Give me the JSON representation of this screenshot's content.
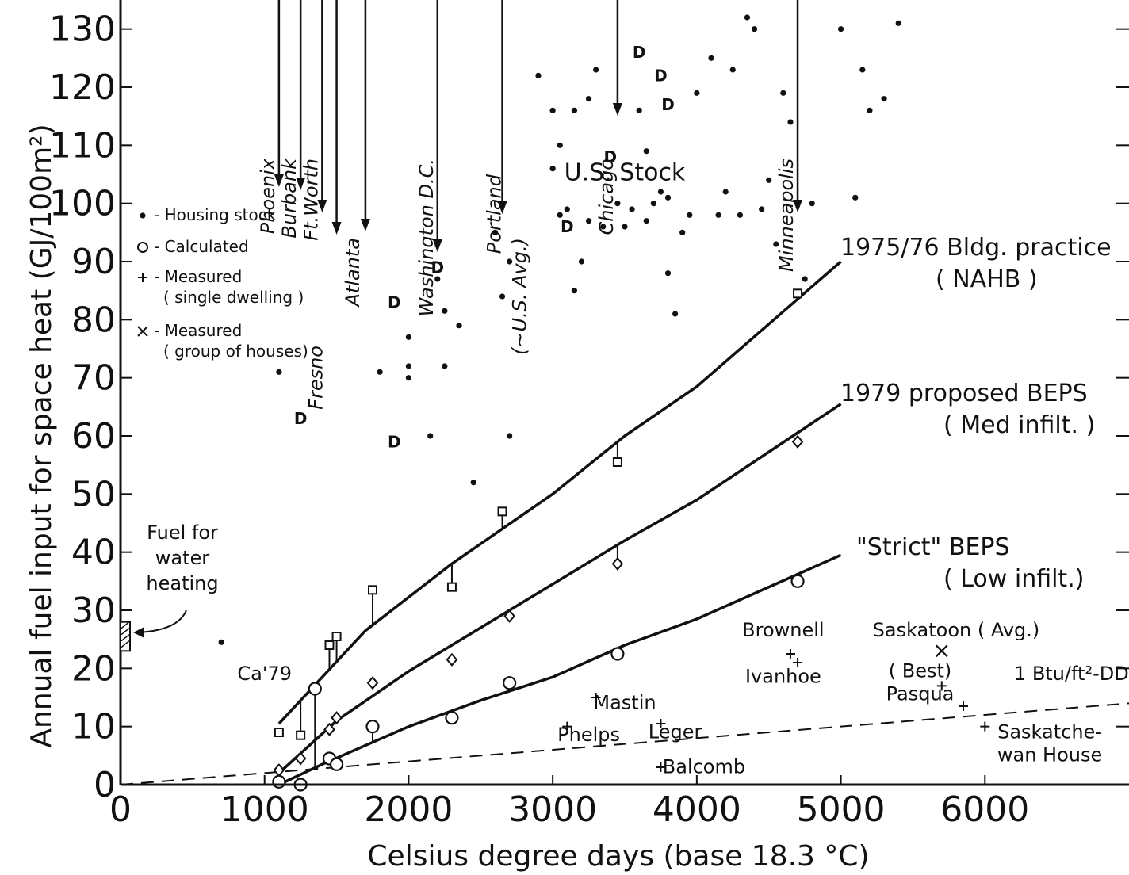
{
  "chart_data": {
    "type": "scatter",
    "xlabel": "Celsius degree days (base 18.3 °C)",
    "ylabel": "Annual fuel input for space heat (GJ/100m²)",
    "xlim": [
      0,
      7000
    ],
    "ylim": [
      0,
      135
    ],
    "x_ticks": [
      0,
      1000,
      2000,
      3000,
      4000,
      5000,
      6000
    ],
    "y_ticks": [
      0,
      10,
      20,
      30,
      40,
      50,
      60,
      70,
      80,
      90,
      100,
      110,
      120,
      130
    ],
    "grid": false,
    "legend_position": "left",
    "legend": [
      {
        "symbol": "•",
        "label": "Housing stock"
      },
      {
        "symbol": "O",
        "label": "Calculated"
      },
      {
        "symbol": "+",
        "label": "Measured",
        "sub": "( single dwelling )"
      },
      {
        "symbol": "×",
        "label": "Measured",
        "sub": "( group of houses)"
      }
    ],
    "series": [
      {
        "name": "1975/76 Bldg. practice (NAHB)",
        "kind": "line",
        "label_lines": [
          "1975/76 Bldg. practice",
          "( NAHB )"
        ],
        "line": [
          [
            1100,
            10.5
          ],
          [
            1700,
            26.5
          ],
          [
            2300,
            38
          ],
          [
            3000,
            50
          ],
          [
            3500,
            60
          ],
          [
            4000,
            68.5
          ],
          [
            5000,
            90
          ]
        ],
        "points": [
          [
            1100,
            9
          ],
          [
            1250,
            8.5
          ],
          [
            1450,
            24
          ],
          [
            1500,
            25.5
          ],
          [
            1750,
            33.5
          ],
          [
            2300,
            34
          ],
          [
            2650,
            47
          ],
          [
            3450,
            55.5
          ],
          [
            4700,
            84.5
          ]
        ]
      },
      {
        "name": "1979 proposed BEPS (Med infilt.)",
        "kind": "line",
        "label_lines": [
          "1979 proposed BEPS",
          "( Med infilt. )"
        ],
        "line": [
          [
            1100,
            2
          ],
          [
            1500,
            11
          ],
          [
            2000,
            19.5
          ],
          [
            2500,
            27
          ],
          [
            3000,
            34.5
          ],
          [
            3500,
            42
          ],
          [
            4000,
            49
          ],
          [
            5000,
            65.5
          ]
        ],
        "points": [
          [
            1100,
            2.5
          ],
          [
            1250,
            4.5
          ],
          [
            1450,
            9.5
          ],
          [
            1500,
            11.5
          ],
          [
            1750,
            17.5
          ],
          [
            2300,
            21.5
          ],
          [
            2700,
            29
          ],
          [
            3450,
            38
          ],
          [
            4700,
            59
          ]
        ]
      },
      {
        "name": "\"Strict\" BEPS (Low infilt.)",
        "kind": "line",
        "label_lines": [
          "\"Strict\" BEPS",
          "( Low infilt.)"
        ],
        "line": [
          [
            1100,
            0
          ],
          [
            1400,
            3.5
          ],
          [
            2000,
            10
          ],
          [
            2500,
            14.5
          ],
          [
            3000,
            18.5
          ],
          [
            3500,
            24
          ],
          [
            4000,
            28.5
          ],
          [
            5000,
            39.5
          ]
        ],
        "points": [
          [
            1100,
            0.5
          ],
          [
            1250,
            0
          ],
          [
            1350,
            16.5
          ],
          [
            1450,
            4.5
          ],
          [
            1500,
            3.5
          ],
          [
            1750,
            10
          ],
          [
            2300,
            11.5
          ],
          [
            2700,
            17.5
          ],
          [
            3450,
            22.5
          ],
          [
            4700,
            35
          ]
        ]
      },
      {
        "name": "1 Btu/ft²-DD",
        "kind": "dashed",
        "line": [
          [
            0,
            0
          ],
          [
            7000,
            14
          ]
        ]
      },
      {
        "name": "Housing stock",
        "kind": "dots",
        "points": [
          [
            700,
            24.5
          ],
          [
            1100,
            71
          ],
          [
            1800,
            71
          ],
          [
            2000,
            70
          ],
          [
            2000,
            72
          ],
          [
            2000,
            77
          ],
          [
            2150,
            60
          ],
          [
            2200,
            87
          ],
          [
            2250,
            81.5
          ],
          [
            2250,
            72
          ],
          [
            2350,
            79
          ],
          [
            2450,
            52
          ],
          [
            2600,
            95
          ],
          [
            2650,
            84
          ],
          [
            2700,
            90
          ],
          [
            2700,
            60
          ],
          [
            2900,
            122
          ],
          [
            3000,
            106
          ],
          [
            3000,
            116
          ],
          [
            3050,
            98
          ],
          [
            3050,
            110
          ],
          [
            3100,
            99
          ],
          [
            3150,
            85
          ],
          [
            3150,
            116
          ],
          [
            3200,
            90
          ],
          [
            3250,
            97
          ],
          [
            3250,
            118
          ],
          [
            3300,
            123
          ],
          [
            3350,
            96
          ],
          [
            3450,
            100
          ],
          [
            3500,
            96
          ],
          [
            3550,
            99
          ],
          [
            3600,
            116
          ],
          [
            3650,
            97
          ],
          [
            3650,
            109
          ],
          [
            3700,
            100
          ],
          [
            3750,
            102
          ],
          [
            3800,
            101
          ],
          [
            3800,
            88
          ],
          [
            3850,
            81
          ],
          [
            3900,
            95
          ],
          [
            3950,
            98
          ],
          [
            4000,
            119
          ],
          [
            4100,
            125
          ],
          [
            4150,
            98
          ],
          [
            4200,
            102
          ],
          [
            4250,
            123
          ],
          [
            4300,
            98
          ],
          [
            4350,
            132
          ],
          [
            4400,
            130
          ],
          [
            4450,
            99
          ],
          [
            4500,
            104
          ],
          [
            4550,
            93
          ],
          [
            4600,
            119
          ],
          [
            4650,
            114
          ],
          [
            4750,
            87
          ],
          [
            4800,
            100
          ],
          [
            5000,
            130
          ],
          [
            5100,
            101
          ],
          [
            5150,
            123
          ],
          [
            5200,
            116
          ],
          [
            5300,
            118
          ],
          [
            5400,
            131
          ]
        ]
      },
      {
        "name": "Calculated (D)",
        "kind": "text-marker",
        "marker": "D",
        "points": [
          [
            1250,
            63
          ],
          [
            1900,
            59
          ],
          [
            1900,
            83
          ],
          [
            2200,
            89
          ],
          [
            3100,
            96
          ],
          [
            3400,
            108
          ],
          [
            3600,
            126
          ],
          [
            3750,
            122
          ],
          [
            3800,
            117
          ]
        ]
      },
      {
        "name": "Measured (single dwelling)",
        "kind": "plus",
        "points": [
          [
            3100,
            10
          ],
          [
            3300,
            15
          ],
          [
            3750,
            10.5
          ],
          [
            3750,
            3
          ],
          [
            4650,
            22.5
          ],
          [
            4700,
            21
          ],
          [
            5700,
            17
          ],
          [
            5850,
            13.5
          ],
          [
            6000,
            10
          ]
        ]
      },
      {
        "name": "Measured (group of houses)",
        "kind": "cross",
        "points": [
          [
            5700,
            23
          ]
        ]
      }
    ],
    "water_heating": {
      "label_lines": [
        "Fuel for",
        "water",
        "heating"
      ],
      "ylo": 23,
      "yhi": 28
    },
    "cities": [
      {
        "name": "Phoenix",
        "x": 1100
      },
      {
        "name": "Burbank",
        "x": 1250
      },
      {
        "name": "Ft.Worth",
        "x": 1400
      },
      {
        "name": "Fresno",
        "x": 1500
      },
      {
        "name": "Atlanta",
        "x": 1700
      },
      {
        "name": "Washington D.C.",
        "x": 2200
      },
      {
        "name": "Portland",
        "x": 2650
      },
      {
        "name": "(~U.S. Avg.)",
        "x": 2650
      },
      {
        "name": "Chicago",
        "x": 3450
      },
      {
        "name": "Minneapolis",
        "x": 4700
      }
    ],
    "annotations": [
      {
        "text": "U.S. Stock",
        "x": 3500,
        "y": 104
      },
      {
        "text": "Ca'79",
        "x": 1000,
        "y": 18
      },
      {
        "text": "Brownell",
        "x": 4600,
        "y": 25.5
      },
      {
        "text": "Ivanhoe",
        "x": 4600,
        "y": 17.5
      },
      {
        "text": "Saskatoon ( Avg.)",
        "x": 5800,
        "y": 25.5
      },
      {
        "text": "( Best)",
        "x": 5550,
        "y": 18.5
      },
      {
        "text": "Pasqua",
        "x": 5550,
        "y": 14.5
      },
      {
        "text": "Mastin",
        "x": 3500,
        "y": 13
      },
      {
        "text": "Phelps",
        "x": 3250,
        "y": 7.5
      },
      {
        "text": "Leger",
        "x": 3850,
        "y": 8
      },
      {
        "text": "Balcomb",
        "x": 4050,
        "y": 2
      },
      {
        "text": "Saskatche-",
        "x": 6450,
        "y": 8
      },
      {
        "text": "wan House",
        "x": 6450,
        "y": 4
      },
      {
        "text": "1 Btu/ft²-DD",
        "x": 6600,
        "y": 18
      }
    ]
  }
}
